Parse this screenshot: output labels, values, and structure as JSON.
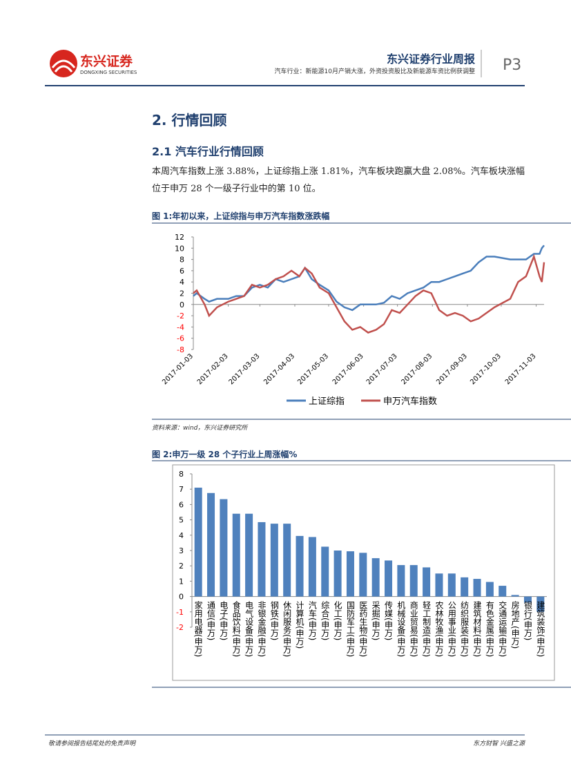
{
  "header": {
    "logo_cn": "东兴证券",
    "logo_en": "DONGXING SECURITIES",
    "title": "东兴证券行业周报",
    "subtitle": "汽车行业：新能源10月产销大涨，外资投资股比及新能源车资比例获调整",
    "page": "P3"
  },
  "section": {
    "heading": "2. 行情回顾",
    "subheading": "2.1 汽车行业行情回顾",
    "paragraph": "本周汽车指数上涨 3.88%，上证综指上涨 1.81%，汽车板块跑赢大盘 2.08%。汽车板块涨幅位于申万 28 个一级子行业中的第 10 位。"
  },
  "footer": {
    "left": "敬请参阅报告结尾处的免责声明",
    "right": "东方财智 兴盛之源"
  },
  "chart_data": [
    {
      "type": "line",
      "title": "图 1:年初以来，上证综指与申万汽车指数涨跌幅",
      "source": "资料来源：wind，东兴证券研究所",
      "x": [
        "2017-01-03",
        "2017-01-06",
        "2017-01-13",
        "2017-01-17",
        "2017-01-24",
        "2017-02-03",
        "2017-02-10",
        "2017-02-17",
        "2017-02-24",
        "2017-03-03",
        "2017-03-10",
        "2017-03-17",
        "2017-03-24",
        "2017-03-31",
        "2017-04-07",
        "2017-04-12",
        "2017-04-18",
        "2017-04-25",
        "2017-05-03",
        "2017-05-10",
        "2017-05-17",
        "2017-05-24",
        "2017-05-31",
        "2017-06-07",
        "2017-06-14",
        "2017-06-21",
        "2017-06-28",
        "2017-07-05",
        "2017-07-12",
        "2017-07-19",
        "2017-07-26",
        "2017-08-02",
        "2017-08-09",
        "2017-08-16",
        "2017-08-23",
        "2017-08-30",
        "2017-09-06",
        "2017-09-13",
        "2017-09-20",
        "2017-09-27",
        "2017-10-11",
        "2017-10-18",
        "2017-10-25",
        "2017-11-01",
        "2017-11-06",
        "2017-11-08",
        "2017-11-10"
      ],
      "series": [
        {
          "name": "上证综指",
          "color": "#4a7ebb",
          "values": [
            1.5,
            2,
            1,
            0.5,
            1,
            1,
            1.5,
            1.5,
            3,
            3.5,
            3,
            4.5,
            4,
            4.5,
            5,
            6.5,
            4.5,
            3.5,
            2.5,
            0.5,
            -0.5,
            -1,
            0,
            0,
            0,
            0.3,
            1.5,
            1,
            2,
            2.5,
            3,
            4,
            4,
            4.5,
            5,
            5.5,
            6,
            7.5,
            8.5,
            8.5,
            8,
            8,
            8,
            9,
            9,
            10,
            10.5
          ]
        },
        {
          "name": "申万汽车指数",
          "color": "#c0504d",
          "values": [
            2,
            2.5,
            0,
            -2,
            -0.5,
            0.5,
            1,
            1.5,
            3.5,
            3,
            3.5,
            4.5,
            5,
            6,
            5,
            6.5,
            5.5,
            3,
            2,
            -0.5,
            -3,
            -4.5,
            -4,
            -5,
            -4.5,
            -3.5,
            -1,
            -1.5,
            0,
            1.5,
            2.5,
            2,
            -1,
            -2,
            -1.5,
            -2,
            -3,
            -2.5,
            -1.5,
            -0.5,
            1,
            4,
            5,
            8.5,
            5,
            4,
            7.5
          ]
        }
      ],
      "xlim": [
        "2017-01-03",
        "2017-11-10"
      ],
      "xticks": [
        "2017-01-03",
        "2017-02-03",
        "2017-03-03",
        "2017-04-03",
        "2017-05-03",
        "2017-06-03",
        "2017-07-03",
        "2017-08-03",
        "2017-09-03",
        "2017-10-03",
        "2017-11-03"
      ],
      "ylim": [
        -8,
        12
      ],
      "yticks": [
        -8,
        -6,
        -4,
        -2,
        0,
        2,
        4,
        6,
        8,
        10,
        12
      ],
      "negative_tick_color": "#ff0000",
      "legend": "bottom"
    },
    {
      "type": "bar",
      "title": "图 2:申万一级 28 个子行业上周涨幅%",
      "categories": [
        "家用电器(申万)",
        "通信(申万)",
        "电子(申万)",
        "食品饮料(申万)",
        "电气设备(申万)",
        "非银金融(申万)",
        "钢铁(申万)",
        "休闲服务(申万)",
        "计算机(申万)",
        "汽车(申万)",
        "综合(申万)",
        "化工(申万)",
        "国防军工(申万)",
        "医药生物(申万)",
        "采掘(申万)",
        "传媒(申万)",
        "机械设备(申万)",
        "商业贸易(申万)",
        "轻工制造(申万)",
        "农林牧渔(申万)",
        "公用事业(申万)",
        "纺织服装(申万)",
        "建筑材料(申万)",
        "有色金属(申万)",
        "交通运输(申万)",
        "房地产(申万)",
        "银行(申万)",
        "建筑装饰(申万)"
      ],
      "values": [
        7.1,
        6.75,
        6.35,
        5.4,
        5.4,
        4.85,
        4.75,
        4.75,
        3.95,
        3.88,
        3.25,
        3.0,
        2.95,
        2.85,
        2.5,
        2.35,
        2.05,
        2.05,
        1.9,
        1.5,
        1.5,
        1.25,
        1.15,
        0.95,
        0.7,
        0.1,
        -0.4,
        -1.0
      ],
      "color": "#4f81bd",
      "ylim": [
        -2,
        8
      ],
      "yticks": [
        -2,
        -1,
        0,
        1,
        2,
        3,
        4,
        5,
        6,
        7,
        8
      ],
      "negative_tick_color": "#ff0000"
    }
  ]
}
